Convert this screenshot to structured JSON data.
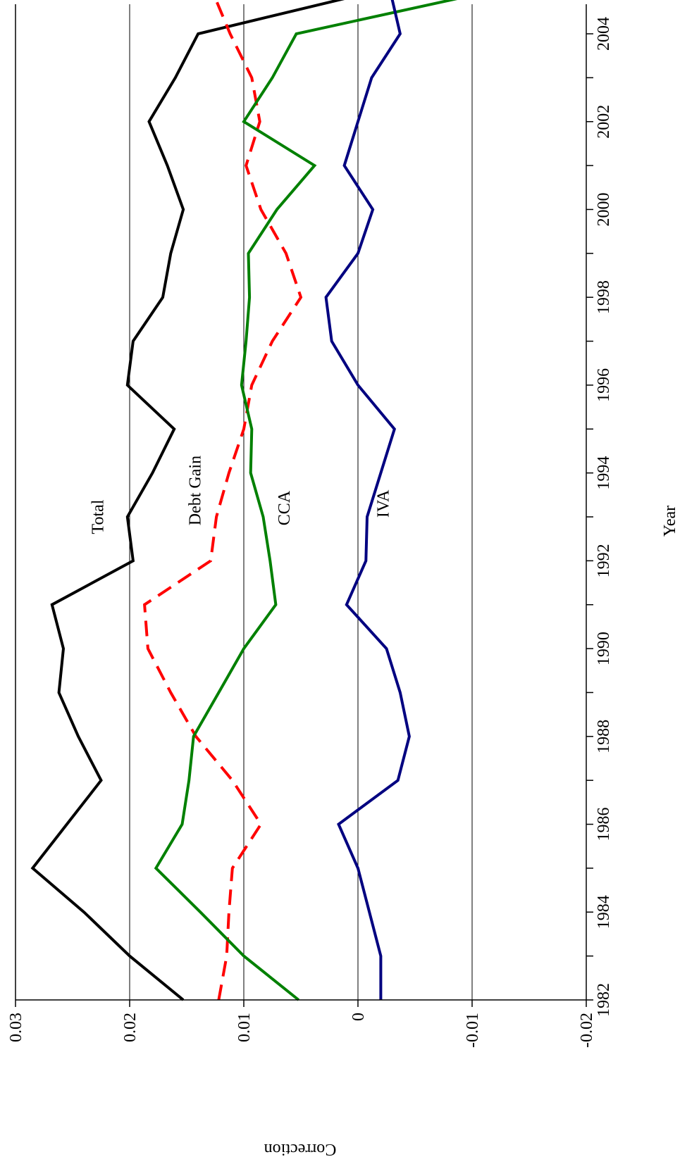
{
  "chart_data": {
    "type": "line",
    "xlabel": "Year",
    "ylabel": "Correction",
    "xlim": [
      1982,
      2005
    ],
    "ylim": [
      -0.02,
      0.03
    ],
    "x_ticks": [
      1982,
      1984,
      1986,
      1988,
      1990,
      1992,
      1994,
      1996,
      1998,
      2000,
      2002,
      2004
    ],
    "y_ticks": [
      -0.02,
      -0.01,
      0,
      0.01,
      0.02,
      0.03
    ],
    "y_tick_labels": [
      "-0.02",
      "-0.01",
      "0",
      "0.01",
      "0.02",
      "0.03"
    ],
    "grid": "horizontal",
    "orientation": "rotated 90° counter-clockwise",
    "x": [
      1982,
      1983,
      1984,
      1985,
      1986,
      1987,
      1988,
      1989,
      1990,
      1991,
      1992,
      1993,
      1994,
      1995,
      1996,
      1997,
      1998,
      1999,
      2000,
      2001,
      2002,
      2003,
      2004,
      2005
    ],
    "series": [
      {
        "name": "Total",
        "color": "#000000",
        "dash": "solid",
        "values": [
          0.0153,
          0.02,
          0.024,
          0.0285,
          0.0255,
          0.0225,
          0.0245,
          0.0262,
          0.0258,
          0.0268,
          0.0197,
          0.0202,
          0.018,
          0.0161,
          0.0202,
          0.0197,
          0.0171,
          0.0164,
          0.0153,
          0.0167,
          0.0183,
          0.016,
          0.014,
          -0.002
        ]
      },
      {
        "name": "Debt Gain",
        "color": "#ff0000",
        "dash": "dashed",
        "values": [
          0.0122,
          0.0115,
          0.0113,
          0.011,
          0.0085,
          0.011,
          0.0142,
          0.0164,
          0.0184,
          0.0187,
          0.0129,
          0.0124,
          0.0113,
          0.01,
          0.0093,
          0.0075,
          0.005,
          0.0063,
          0.0085,
          0.0098,
          0.0086,
          0.0093,
          0.0112,
          0.0128
        ]
      },
      {
        "name": "CCA",
        "color": "#008000",
        "dash": "solid",
        "values": [
          0.0052,
          0.01,
          0.0138,
          0.0177,
          0.0154,
          0.0148,
          0.0144,
          0.0122,
          0.01,
          0.0072,
          0.0077,
          0.0083,
          0.0094,
          0.0093,
          0.0102,
          0.0098,
          0.0095,
          0.0096,
          0.0071,
          0.0038,
          0.01,
          0.0075,
          0.0054,
          -0.0122
        ]
      },
      {
        "name": "IVA",
        "color": "#000080",
        "dash": "solid",
        "values": [
          -0.002,
          -0.002,
          -0.001,
          0.0,
          0.0017,
          -0.0035,
          -0.0045,
          -0.0037,
          -0.0025,
          0.001,
          -0.0007,
          -0.0008,
          -0.002,
          -0.0032,
          0.0,
          0.0023,
          0.0028,
          0.0,
          -0.0013,
          0.0012,
          0.0,
          -0.0012,
          -0.0037,
          -0.0028
        ]
      }
    ],
    "annotations": [
      {
        "text": "Total",
        "x": 1993,
        "y": 0.0223
      },
      {
        "text": "Debt Gain",
        "x": 1993.6,
        "y": 0.0138
      },
      {
        "text": "CCA",
        "x": 1993.2,
        "y": 0.006
      },
      {
        "text": "IVA",
        "x": 1993.3,
        "y": -0.0027
      }
    ]
  }
}
